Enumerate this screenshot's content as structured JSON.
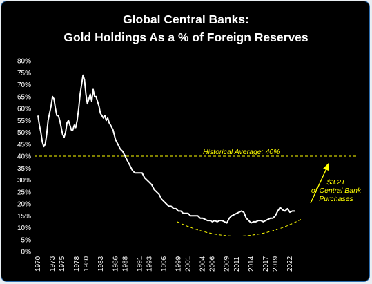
{
  "chart_data": {
    "type": "line",
    "title": "Global Central Banks:",
    "subtitle": "Gold Holdings As a % of Foreign Reserves",
    "ylim": [
      0,
      80
    ],
    "yticks": [
      "0%",
      "5%",
      "10%",
      "15%",
      "20%",
      "25%",
      "30%",
      "35%",
      "40%",
      "45%",
      "50%",
      "55%",
      "60%",
      "65%",
      "70%",
      "75%",
      "80%"
    ],
    "xlim": [
      1970,
      2024
    ],
    "xticks": [
      "1970",
      "1973",
      "1975",
      "1978",
      "1980",
      "1983",
      "1986",
      "1988",
      "1991",
      "1993",
      "1996",
      "1999",
      "2001",
      "2004",
      "2006",
      "2009",
      "2011",
      "2014",
      "2017",
      "2019",
      "2022"
    ],
    "grid": false,
    "series": [
      {
        "color": "#ffffff",
        "x": [
          1970.0,
          1970.3,
          1970.6,
          1970.9,
          1971.2,
          1971.5,
          1971.8,
          1972.1,
          1972.4,
          1972.7,
          1973.0,
          1973.3,
          1973.6,
          1973.9,
          1974.2,
          1974.5,
          1974.8,
          1975.1,
          1975.4,
          1975.7,
          1976.0,
          1976.3,
          1976.6,
          1976.9,
          1977.2,
          1977.5,
          1977.8,
          1978.1,
          1978.4,
          1978.7,
          1979.0,
          1979.3,
          1979.6,
          1979.9,
          1980.2,
          1980.5,
          1980.8,
          1981.1,
          1981.4,
          1981.7,
          1982.0,
          1982.3,
          1982.6,
          1982.9,
          1983.2,
          1983.5,
          1983.8,
          1984.1,
          1984.4,
          1984.7,
          1985.0,
          1985.5,
          1986.0,
          1986.5,
          1987.0,
          1987.5,
          1988.0,
          1988.5,
          1989.0,
          1989.5,
          1990.0,
          1990.5,
          1991.0,
          1991.5,
          1992.0,
          1992.5,
          1993.0,
          1993.5,
          1994.0,
          1994.5,
          1995.0,
          1995.5,
          1996.0,
          1996.5,
          1997.0,
          1997.5,
          1998.0,
          1998.5,
          1999.0,
          1999.5,
          2000.0,
          2000.5,
          2001.0,
          2001.5,
          2002.0,
          2002.5,
          2003.0,
          2003.5,
          2004.0,
          2004.5,
          2005.0,
          2005.5,
          2006.0,
          2006.5,
          2007.0,
          2007.5,
          2008.0,
          2008.5,
          2009.0,
          2009.5,
          2010.0,
          2010.5,
          2011.0,
          2011.5,
          2012.0,
          2012.5,
          2013.0,
          2013.5,
          2014.0,
          2014.5,
          2015.0,
          2015.5,
          2016.0,
          2016.5,
          2017.0,
          2017.5,
          2018.0,
          2018.5,
          2019.0,
          2019.5,
          2020.0,
          2020.5,
          2021.0,
          2021.5,
          2022.0,
          2022.5,
          2023.0
        ],
        "values": [
          57,
          53,
          50,
          46,
          44,
          45,
          49,
          55,
          58,
          61,
          65,
          64,
          60,
          57,
          57,
          55,
          52,
          49,
          48,
          50,
          54,
          55,
          53,
          51,
          51,
          53,
          52,
          55,
          60,
          66,
          70,
          74,
          72,
          66,
          62,
          64,
          66,
          63,
          68,
          65,
          65,
          63,
          61,
          58,
          57,
          56,
          57,
          55,
          56,
          54,
          53,
          51,
          47,
          45,
          43,
          42,
          40,
          38,
          36,
          34,
          33,
          33,
          33,
          33,
          31,
          30,
          29,
          28,
          26,
          25,
          24,
          22,
          21,
          20,
          19,
          19,
          18,
          18,
          17,
          17,
          16,
          16,
          16,
          15,
          15,
          15,
          15,
          14,
          14,
          13.5,
          13,
          13,
          12.5,
          13,
          12.5,
          13,
          13,
          12.5,
          12,
          14,
          15,
          15.5,
          16,
          16.5,
          17,
          16.5,
          14,
          13,
          12,
          12.5,
          12.5,
          13,
          13,
          12.5,
          13,
          13.5,
          14,
          14,
          15,
          17,
          18.5,
          17.5,
          17,
          18,
          16.5,
          17,
          17
        ]
      }
    ],
    "annotations": {
      "reference_value": 40,
      "reference_label": "Historical Average: 40%",
      "callout_line1": "$3.2T",
      "callout_line2": "of Central Bank",
      "callout_line3": "Purchases"
    },
    "colors": {
      "background": "#000000",
      "line": "#ffffff",
      "accent": "#ffff00",
      "frame_border": "#2f6fb0"
    }
  }
}
